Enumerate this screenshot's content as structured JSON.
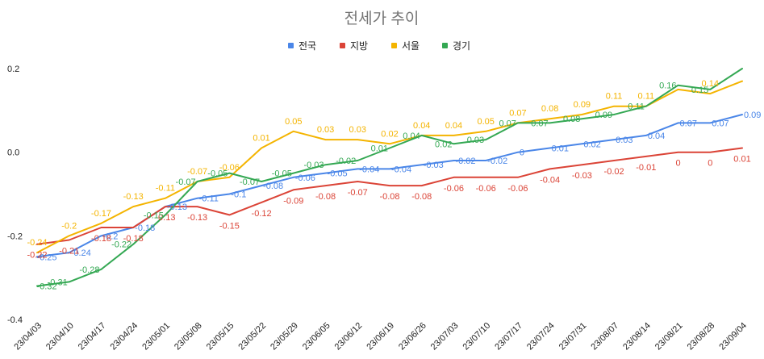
{
  "chart_data": {
    "type": "line",
    "title": "전세가 추이",
    "xlabel": "",
    "ylabel": "",
    "ylim": [
      -0.4,
      0.2
    ],
    "yticks": [
      "0.2",
      "0.0",
      "-0.2",
      "-0.4"
    ],
    "ytick_values": [
      0.2,
      0.0,
      -0.2,
      -0.4
    ],
    "grid": false,
    "legend_position": "top",
    "categories": [
      "23/04/03",
      "23/04/10",
      "23/04/17",
      "23/04/24",
      "23/05/01",
      "23/05/08",
      "23/05/15",
      "23/05/22",
      "23/05/29",
      "23/06/05",
      "23/06/12",
      "23/06/19",
      "23/06/26",
      "23/07/03",
      "23/07/10",
      "23/07/17",
      "23/07/24",
      "23/07/31",
      "23/08/07",
      "23/08/14",
      "23/08/21",
      "23/08/28",
      "23/09/04"
    ],
    "series": [
      {
        "name": "전국",
        "color": "#4a86e8",
        "label_position": "right",
        "values": [
          -0.25,
          -0.24,
          -0.2,
          -0.18,
          -0.13,
          -0.11,
          -0.1,
          -0.08,
          -0.06,
          -0.05,
          -0.04,
          -0.04,
          -0.03,
          -0.02,
          -0.02,
          0,
          0.01,
          0.02,
          0.03,
          0.04,
          0.07,
          0.07,
          0.09
        ],
        "labels": [
          "-0.25",
          "-0.24",
          "-0.2",
          "-0.18",
          "-0.13",
          "-0.11",
          "-0.1",
          "-0.08",
          "-0.06",
          "-0.05",
          "-0.04",
          "-0.04",
          "-0.03",
          "-0.02",
          "-0.02",
          "0",
          "0.01",
          "0.02",
          "0.03",
          "0.04",
          "0.07",
          "0.07",
          "0.09"
        ]
      },
      {
        "name": "지방",
        "color": "#db4437",
        "label_position": "below",
        "values": [
          -0.22,
          -0.21,
          -0.18,
          -0.18,
          -0.13,
          -0.13,
          -0.15,
          -0.12,
          -0.09,
          -0.08,
          -0.07,
          -0.08,
          -0.08,
          -0.06,
          -0.06,
          -0.06,
          -0.04,
          -0.03,
          -0.02,
          -0.01,
          0,
          0,
          0.01
        ],
        "labels": [
          "-0.22",
          "-0.21",
          "-0.18",
          "-0.18",
          "-0.13",
          "-0.13",
          "-0.15",
          "-0.12",
          "-0.09",
          "-0.08",
          "-0.07",
          "-0.08",
          "-0.08",
          "-0.06",
          "-0.06",
          "-0.06",
          "-0.04",
          "-0.03",
          "-0.02",
          "-0.01",
          "0",
          "0",
          "0.01"
        ]
      },
      {
        "name": "서울",
        "color": "#f4b400",
        "label_position": "above",
        "values": [
          -0.24,
          -0.2,
          -0.17,
          -0.13,
          -0.11,
          -0.07,
          -0.06,
          0.01,
          0.05,
          0.03,
          0.03,
          0.02,
          0.04,
          0.04,
          0.05,
          0.07,
          0.08,
          0.09,
          0.11,
          0.11,
          0.15,
          0.14,
          0.17
        ],
        "labels": [
          "-0.24",
          "-0.2",
          "-0.17",
          "-0.13",
          "-0.11",
          "-0.07",
          "-0.06",
          "0.01",
          "0.05",
          "0.03",
          "0.03",
          "0.02",
          "0.04",
          "0.04",
          "0.05",
          "0.07",
          "0.08",
          "0.09",
          "0.11",
          "0.11",
          "",
          "0.14",
          ""
        ]
      },
      {
        "name": "경기",
        "color": "#34a853",
        "label_position": "left",
        "values": [
          -0.32,
          -0.31,
          -0.28,
          -0.22,
          -0.15,
          -0.07,
          -0.05,
          -0.07,
          -0.05,
          -0.03,
          -0.02,
          0.01,
          0.04,
          0.02,
          0.03,
          0.07,
          0.07,
          0.08,
          0.09,
          0.11,
          0.16,
          0.15,
          0.2
        ],
        "labels": [
          "-0.32",
          "-0.31",
          "-0.28",
          "-0.22",
          "-0.15",
          "-0.07",
          "-0.05",
          "-0.07",
          "-0.05",
          "-0.03",
          "-0.02",
          "0.01",
          "0.04",
          "0.02",
          "0.03",
          "0.07",
          "0.07",
          "0.08",
          "0.09",
          "0.11",
          "0.16",
          "0.15",
          ""
        ]
      }
    ]
  }
}
